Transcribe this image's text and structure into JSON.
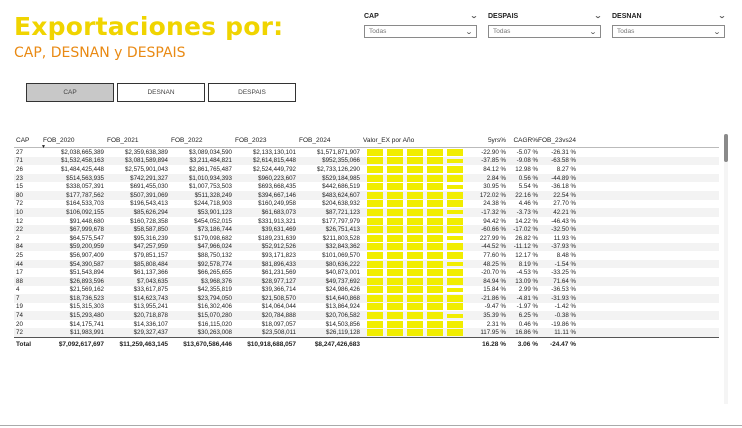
{
  "title": "Exportaciones por:",
  "subtitle": "CAP, DESNAN y DESPAIS",
  "slicers": [
    {
      "label": "CAP",
      "value": "Todas"
    },
    {
      "label": "DESPAIS",
      "value": "Todas"
    },
    {
      "label": "DESNAN",
      "value": "Todas"
    }
  ],
  "tabs": [
    "CAP",
    "DESNAN",
    "DESPAIS"
  ],
  "active_tab": "CAP",
  "colors": {
    "title": "#f0d400",
    "subtitle": "#e98a14",
    "spark": "#f1ed00",
    "active_tab": "#c8c8c8"
  },
  "table": {
    "headers": [
      "CAP",
      "FOB_2020",
      "FOB_2021",
      "FOB_2022",
      "FOB_2023",
      "FOB_2024",
      "Valor_EX por Año",
      "5yrs%",
      "CAGR%",
      "FOB_23vs24%"
    ],
    "rows": [
      [
        "27",
        "$2,038,665,389",
        "$2,359,638,389",
        "$3,089,034,590",
        "$2,133,130,101",
        "$1,571,871,907",
        "-22.90 %",
        "-5.07 %",
        "-26.31 %"
      ],
      [
        "71",
        "$1,532,458,163",
        "$3,081,589,894",
        "$3,211,484,821",
        "$2,614,815,448",
        "$952,355,066",
        "-37.85 %",
        "-9.08 %",
        "-63.58 %"
      ],
      [
        "26",
        "$1,484,425,448",
        "$2,575,901,043",
        "$2,861,765,487",
        "$2,524,449,792",
        "$2,733,126,290",
        "84.12 %",
        "12.98 %",
        "8.27 %"
      ],
      [
        "23",
        "$514,563,935",
        "$742,291,327",
        "$1,010,934,393",
        "$960,223,607",
        "$529,184,985",
        "2.84 %",
        "0.56 %",
        "-44.89 %"
      ],
      [
        "15",
        "$338,057,391",
        "$691,455,030",
        "$1,007,753,503",
        "$693,668,435",
        "$442,686,519",
        "30.95 %",
        "5.54 %",
        "-36.18 %"
      ],
      [
        "80",
        "$177,787,562",
        "$507,391,069",
        "$511,328,249",
        "$394,667,146",
        "$483,624,607",
        "172.02 %",
        "22.16 %",
        "22.54 %"
      ],
      [
        "72",
        "$164,533,703",
        "$196,543,413",
        "$244,718,903",
        "$160,249,958",
        "$204,638,932",
        "24.38 %",
        "4.46 %",
        "27.70 %"
      ],
      [
        "10",
        "$106,092,155",
        "$85,626,294",
        "$53,901,123",
        "$61,683,073",
        "$87,721,123",
        "-17.32 %",
        "-3.73 %",
        "42.21 %"
      ],
      [
        "12",
        "$91,448,680",
        "$160,728,358",
        "$454,052,015",
        "$331,913,321",
        "$177,797,979",
        "94.42 %",
        "14.22 %",
        "-46.43 %"
      ],
      [
        "22",
        "$67,999,678",
        "$58,587,850",
        "$73,186,744",
        "$39,631,469",
        "$26,751,413",
        "-60.66 %",
        "-17.02 %",
        "-32.50 %"
      ],
      [
        "2",
        "$64,575,547",
        "$95,316,239",
        "$179,098,682",
        "$189,231,639",
        "$211,803,528",
        "227.99 %",
        "26.82 %",
        "11.93 %"
      ],
      [
        "84",
        "$59,200,959",
        "$47,257,959",
        "$47,966,024",
        "$52,912,526",
        "$32,843,362",
        "-44.52 %",
        "-11.12 %",
        "-37.93 %"
      ],
      [
        "25",
        "$56,907,409",
        "$79,851,157",
        "$88,750,132",
        "$93,171,823",
        "$101,069,570",
        "77.60 %",
        "12.17 %",
        "8.48 %"
      ],
      [
        "44",
        "$54,390,587",
        "$85,808,484",
        "$92,578,774",
        "$81,896,433",
        "$80,636,222",
        "48.25 %",
        "8.19 %",
        "-1.54 %"
      ],
      [
        "17",
        "$51,543,894",
        "$61,137,366",
        "$66,265,655",
        "$61,231,569",
        "$40,873,001",
        "-20.70 %",
        "-4.53 %",
        "-33.25 %"
      ],
      [
        "88",
        "$26,893,596",
        "$7,043,635",
        "$3,968,376",
        "$28,977,127",
        "$49,737,692",
        "84.94 %",
        "13.09 %",
        "71.64 %"
      ],
      [
        "4",
        "$21,569,162",
        "$33,617,875",
        "$42,355,819",
        "$39,366,714",
        "$24,986,426",
        "15.84 %",
        "2.99 %",
        "-36.53 %"
      ],
      [
        "7",
        "$18,736,523",
        "$14,623,743",
        "$23,794,050",
        "$21,508,570",
        "$14,640,868",
        "-21.86 %",
        "-4.81 %",
        "-31.93 %"
      ],
      [
        "19",
        "$15,315,303",
        "$13,955,241",
        "$16,302,406",
        "$14,064,044",
        "$13,864,924",
        "-9.47 %",
        "-1.97 %",
        "-1.42 %"
      ],
      [
        "74",
        "$15,293,480",
        "$20,718,878",
        "$15,070,280",
        "$20,784,888",
        "$20,706,582",
        "35.39 %",
        "6.25 %",
        "-0.38 %"
      ],
      [
        "20",
        "$14,175,741",
        "$14,336,107",
        "$16,115,020",
        "$18,097,057",
        "$14,503,856",
        "2.31 %",
        "0.46 %",
        "-19.86 %"
      ],
      [
        "72",
        "$11,983,991",
        "$29,327,437",
        "$30,263,008",
        "$23,508,011",
        "$26,119,128",
        "117.95 %",
        "16.86 %",
        "11.11 %"
      ]
    ],
    "total": [
      "Total",
      "$7,092,617,697",
      "$11,259,463,145",
      "$13,670,586,446",
      "$10,918,688,057",
      "$8,247,426,683",
      "",
      "16.28 %",
      "3.06 %",
      "-24.47 %"
    ]
  }
}
